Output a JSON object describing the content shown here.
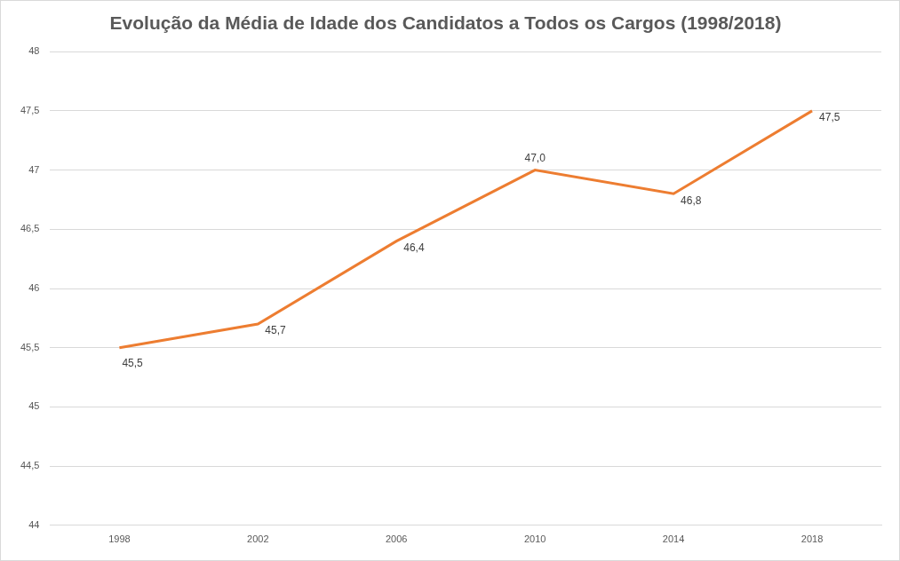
{
  "chart_data": {
    "type": "line",
    "title": "Evolução da Média de Idade dos Candidatos a Todos os Cargos (1998/2018)",
    "categories": [
      "1998",
      "2002",
      "2006",
      "2010",
      "2014",
      "2018"
    ],
    "values": [
      45.5,
      45.7,
      46.4,
      47.0,
      46.8,
      47.5
    ],
    "value_labels": [
      "45,5",
      "45,7",
      "46,4",
      "47,0",
      "46,8",
      "47,5"
    ],
    "color": "#ed7d31",
    "ylim": [
      44,
      48
    ],
    "yticks": [
      44,
      {
        "value": 44.5,
        "label": "44,5"
      },
      45,
      {
        "value": 45.5,
        "label": "45,5"
      },
      46,
      {
        "value": 46.5,
        "label": "46,5"
      },
      47,
      {
        "value": 47.5,
        "label": "47,5"
      },
      48
    ],
    "grid": true,
    "data_labels": true,
    "marker": "none",
    "line_style": "solid"
  }
}
